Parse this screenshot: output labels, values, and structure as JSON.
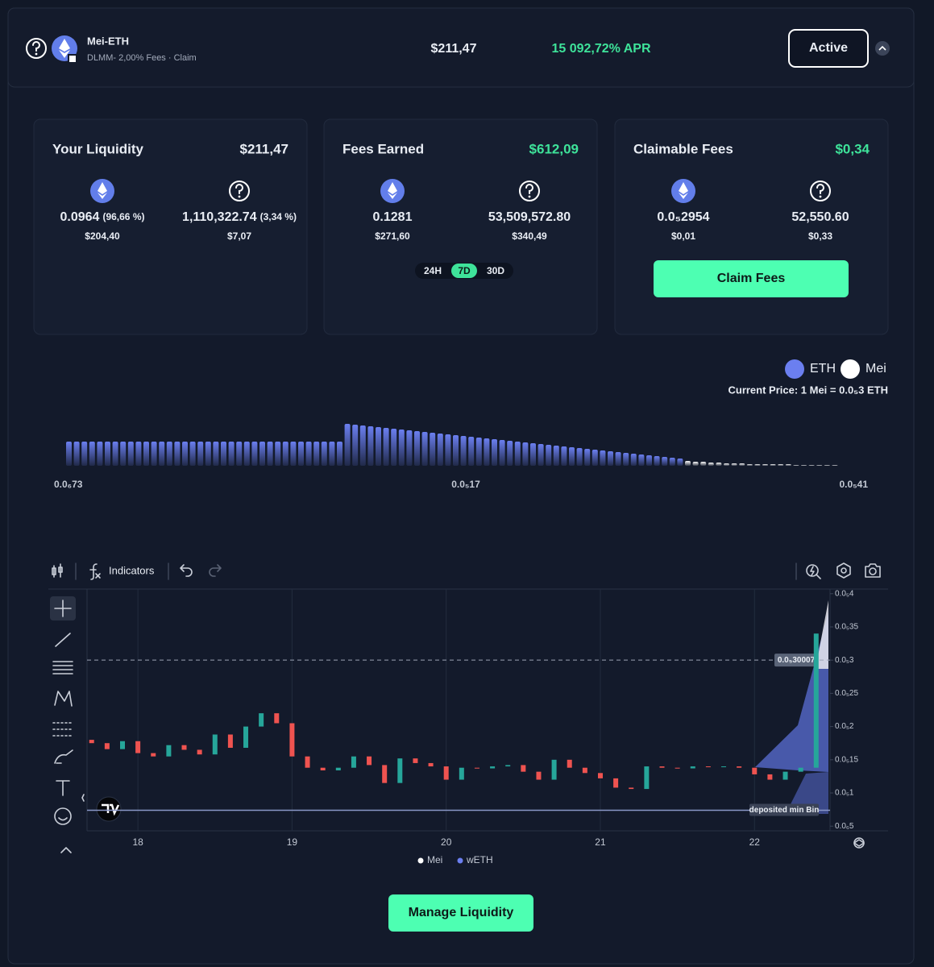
{
  "header": {
    "pair": "Mei-ETH",
    "subtitle": "DLMM- 2,00% Fees · Claim",
    "value": "$211,47",
    "apr": "15 092,72% APR",
    "status": "Active"
  },
  "cards": [
    {
      "title": "Your Liquidity",
      "total": "$211,47",
      "tokens": [
        {
          "amount": "0.0964",
          "share": "(96,66 %)",
          "usd": "$204,40"
        },
        {
          "amount": "1,110,322.74",
          "share": "(3,34 %)",
          "usd": "$7,07"
        }
      ]
    },
    {
      "title": "Fees Earned",
      "total": "$612,09",
      "tokens": [
        {
          "amount": "0.1281",
          "usd": "$271,60"
        },
        {
          "amount": "53,509,572.80",
          "usd": "$340,49"
        }
      ],
      "periods": [
        "24H",
        "7D",
        "30D"
      ],
      "active_period": 1
    },
    {
      "title": "Claimable Fees",
      "total": "$0,34",
      "tokens": [
        {
          "amount": "0.0₅2954",
          "usd": "$0,01"
        },
        {
          "amount": "52,550.60",
          "usd": "$0,33"
        }
      ],
      "button": "Claim Fees"
    }
  ],
  "liquidity": {
    "type": "bar",
    "current_price": "Current Price: 1 Mei = 0.0₅3 ETH",
    "axis_labels": [
      "0.0₆73",
      "0.0₅17",
      "0.0₅41"
    ],
    "series": [
      {
        "name": "ETH",
        "color": "#6b7ff0",
        "values": [
          30,
          30,
          30,
          30,
          30,
          30,
          30,
          30,
          30,
          30,
          30,
          30,
          30,
          30,
          30,
          30,
          30,
          30,
          30,
          30,
          30,
          30,
          30,
          30,
          30,
          30,
          30,
          30,
          30,
          30,
          30,
          30,
          30,
          30,
          30,
          30,
          52,
          51,
          50,
          49,
          48,
          47,
          46,
          45,
          44,
          43,
          42,
          41,
          40,
          39,
          38,
          37,
          36,
          35,
          34,
          33,
          32,
          31,
          30,
          29,
          28,
          27,
          26,
          25,
          24,
          23,
          22,
          21,
          20,
          19,
          18,
          17,
          16,
          15,
          14,
          13,
          12,
          11,
          10,
          9,
          null,
          null,
          null,
          null,
          null,
          null,
          null,
          null,
          null,
          null,
          null,
          null,
          null,
          null,
          null,
          null,
          null,
          null,
          null,
          null
        ]
      },
      {
        "name": "Mei",
        "color": "#ffffff",
        "values": [
          null,
          null,
          null,
          null,
          null,
          null,
          null,
          null,
          null,
          null,
          null,
          null,
          null,
          null,
          null,
          null,
          null,
          null,
          null,
          null,
          null,
          null,
          null,
          null,
          null,
          null,
          null,
          null,
          null,
          null,
          null,
          null,
          null,
          null,
          null,
          null,
          null,
          null,
          null,
          null,
          null,
          null,
          null,
          null,
          null,
          null,
          null,
          null,
          null,
          null,
          null,
          null,
          null,
          null,
          null,
          null,
          null,
          null,
          null,
          null,
          null,
          null,
          null,
          null,
          null,
          null,
          null,
          null,
          null,
          null,
          null,
          null,
          null,
          null,
          null,
          null,
          null,
          null,
          null,
          null,
          6,
          5,
          5,
          4,
          4,
          3,
          3,
          3,
          2,
          2,
          2,
          2,
          2,
          2,
          1,
          1,
          1,
          1,
          1,
          1
        ]
      }
    ]
  },
  "price_chart": {
    "type": "candlestick",
    "indicators": "Indicators",
    "xlim": [
      17.67,
      22.49
    ],
    "ylim": [
      4.3e-07,
      4.07e-06
    ],
    "xticks": [
      18,
      19,
      20,
      21,
      22
    ],
    "yticks": [
      {
        "value": 4e-06,
        "label": "0.0₅4"
      },
      {
        "value": 3.5e-06,
        "label": "0.0₅35"
      },
      {
        "value": 3e-06,
        "label": "0.0₅3"
      },
      {
        "value": 2.5e-06,
        "label": "0.0₅25"
      },
      {
        "value": 2e-06,
        "label": "0.0₅2"
      },
      {
        "value": 1.5e-06,
        "label": "0.0₅15"
      },
      {
        "value": 1e-06,
        "label": "0.0₅1"
      },
      {
        "value": 5e-07,
        "label": "0.0₆5"
      }
    ],
    "price_line": {
      "value": 3.0007e-06,
      "label": "0.0₅30007"
    },
    "min_bin": {
      "value": 7.4e-07,
      "label": "deposited min Bin"
    },
    "up_color": "#26a69a",
    "down_color": "#ef5350",
    "x": [
      17.7,
      17.8,
      17.9,
      18.0,
      18.1,
      18.2,
      18.3,
      18.4,
      18.5,
      18.6,
      18.7,
      18.8,
      18.9,
      19.0,
      19.1,
      19.2,
      19.3,
      19.4,
      19.5,
      19.6,
      19.7,
      19.8,
      19.9,
      20.0,
      20.1,
      20.2,
      20.3,
      20.4,
      20.5,
      20.6,
      20.7,
      20.8,
      20.9,
      21.0,
      21.1,
      21.2,
      21.3,
      21.4,
      21.5,
      21.6,
      21.7,
      21.8,
      21.9,
      22.0,
      22.1,
      22.2,
      22.3,
      22.4
    ],
    "open": [
      1.8e-06,
      1.75e-06,
      1.66e-06,
      1.78e-06,
      1.6e-06,
      1.55e-06,
      1.72e-06,
      1.65e-06,
      1.58e-06,
      1.88e-06,
      1.68e-06,
      2e-06,
      2.2e-06,
      2.05e-06,
      1.55e-06,
      1.38e-06,
      1.34e-06,
      1.38e-06,
      1.55e-06,
      1.42e-06,
      1.15e-06,
      1.52e-06,
      1.45e-06,
      1.4e-06,
      1.2e-06,
      1.38e-06,
      1.37e-06,
      1.4e-06,
      1.42e-06,
      1.32e-06,
      1.2e-06,
      1.5e-06,
      1.38e-06,
      1.3e-06,
      1.22e-06,
      1.08e-06,
      1.06e-06,
      1.4e-06,
      1.38e-06,
      1.37e-06,
      1.4e-06,
      1.39e-06,
      1.4e-06,
      1.38e-06,
      1.28e-06,
      1.2e-06,
      1.32e-06,
      1.38e-06
    ],
    "close": [
      1.75e-06,
      1.66e-06,
      1.78e-06,
      1.6e-06,
      1.55e-06,
      1.72e-06,
      1.65e-06,
      1.58e-06,
      1.88e-06,
      1.68e-06,
      2e-06,
      2.2e-06,
      2.05e-06,
      1.55e-06,
      1.38e-06,
      1.34e-06,
      1.38e-06,
      1.55e-06,
      1.42e-06,
      1.15e-06,
      1.52e-06,
      1.45e-06,
      1.4e-06,
      1.2e-06,
      1.38e-06,
      1.37e-06,
      1.4e-06,
      1.42e-06,
      1.32e-06,
      1.2e-06,
      1.5e-06,
      1.38e-06,
      1.3e-06,
      1.22e-06,
      1.08e-06,
      1.06e-06,
      1.4e-06,
      1.38e-06,
      1.37e-06,
      1.4e-06,
      1.39e-06,
      1.4e-06,
      1.38e-06,
      1.28e-06,
      1.2e-06,
      1.32e-06,
      1.38e-06,
      3.4e-06
    ],
    "legend": [
      {
        "name": "Mei",
        "color": "#ffffff"
      },
      {
        "name": "wETH",
        "color": "#6b7ff0"
      }
    ]
  },
  "footer": {
    "button": "Manage Liquidity"
  }
}
